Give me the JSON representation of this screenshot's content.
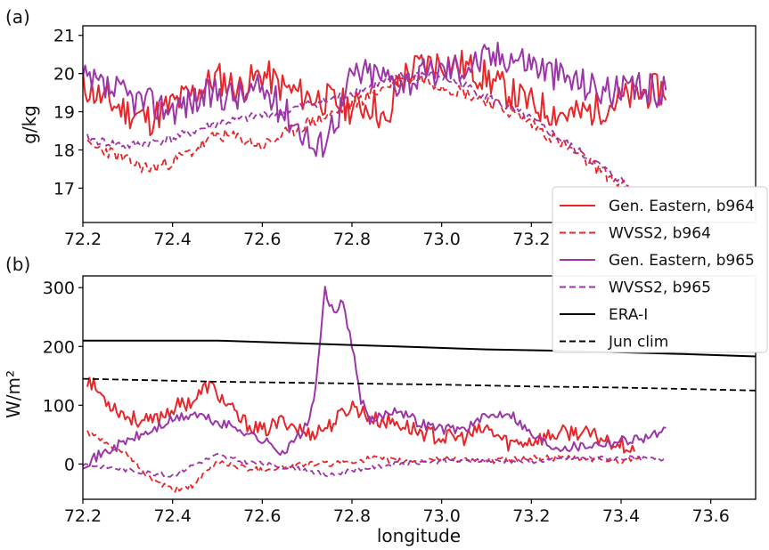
{
  "colors": {
    "red": "#e8262a",
    "purple": "#9b35a8",
    "black": "#000000"
  },
  "legend": {
    "placement": "right, between panels",
    "entries": [
      {
        "label": "Gen. Eastern, b964",
        "color": "#e8262a",
        "dash": "solid"
      },
      {
        "label": "WVSS2, b964",
        "color": "#e8262a",
        "dash": "dashed"
      },
      {
        "label": "Gen. Eastern, b965",
        "color": "#9b35a8",
        "dash": "solid"
      },
      {
        "label": "WVSS2, b965",
        "color": "#9b35a8",
        "dash": "dashed"
      },
      {
        "label": "ERA-I",
        "color": "#000000",
        "dash": "solid"
      },
      {
        "label": "Jun clim",
        "color": "#000000",
        "dash": "dashed"
      }
    ]
  },
  "chart_data": [
    {
      "type": "line",
      "panel_label": "(a)",
      "ylabel": "g/kg",
      "xlabel": "",
      "xlim": [
        72.2,
        73.7
      ],
      "ylim": [
        16.1,
        21.25
      ],
      "xticks": [
        "72.2",
        "72.4",
        "72.6",
        "72.8",
        "73.0",
        "73.2"
      ],
      "yticks": [
        "17",
        "18",
        "19",
        "20",
        "21"
      ],
      "series": [
        {
          "name": "Gen. Eastern, b964",
          "color": "#e8262a",
          "dash": "solid",
          "noise": 0.45,
          "seed": 11,
          "x": [
            72.2,
            72.25,
            72.3,
            72.35,
            72.4,
            72.45,
            72.5,
            72.55,
            72.6,
            72.65,
            72.7,
            72.75,
            72.8,
            72.85,
            72.88,
            72.9,
            72.95,
            73.0,
            73.05,
            73.1,
            73.15,
            73.2,
            73.25,
            73.3,
            73.35,
            73.4,
            73.45,
            73.5
          ],
          "y": [
            19.7,
            19.3,
            19.0,
            18.8,
            19.2,
            19.5,
            19.9,
            19.6,
            20.0,
            19.6,
            19.4,
            19.3,
            19.1,
            19.2,
            18.5,
            19.8,
            20.2,
            20.3,
            20.2,
            19.9,
            19.5,
            19.2,
            19.0,
            18.9,
            19.1,
            19.3,
            19.5,
            19.6
          ]
        },
        {
          "name": "WVSS2, b964",
          "color": "#e8262a",
          "dash": "dashed",
          "noise": 0.18,
          "seed": 23,
          "x": [
            72.21,
            72.25,
            72.3,
            72.35,
            72.4,
            72.45,
            72.5,
            72.55,
            72.6,
            72.65,
            72.7,
            72.75,
            72.8,
            72.85,
            72.9,
            72.95,
            73.0,
            73.05,
            73.1,
            73.15,
            73.2,
            73.25,
            73.3,
            73.35,
            73.4,
            73.42
          ],
          "y": [
            18.1,
            18.0,
            17.7,
            17.5,
            17.7,
            18.0,
            18.4,
            18.3,
            18.1,
            18.4,
            18.7,
            18.9,
            19.2,
            19.5,
            19.8,
            19.9,
            19.7,
            19.5,
            19.3,
            19.0,
            18.7,
            18.3,
            17.9,
            17.5,
            17.1,
            16.9
          ]
        },
        {
          "name": "Gen. Eastern, b965",
          "color": "#9b35a8",
          "dash": "solid",
          "noise": 0.45,
          "seed": 37,
          "x": [
            72.2,
            72.25,
            72.3,
            72.35,
            72.4,
            72.45,
            72.5,
            72.55,
            72.6,
            72.65,
            72.7,
            72.72,
            72.75,
            72.78,
            72.8,
            72.85,
            72.9,
            72.95,
            73.0,
            73.05,
            73.1,
            73.15,
            73.2,
            73.25,
            73.3,
            73.35,
            73.4,
            73.45,
            73.5
          ],
          "y": [
            19.8,
            19.6,
            19.4,
            19.2,
            19.1,
            19.3,
            19.5,
            19.4,
            19.6,
            19.0,
            18.4,
            17.9,
            18.6,
            19.2,
            20.0,
            20.0,
            19.8,
            19.9,
            20.1,
            20.2,
            20.4,
            20.5,
            20.3,
            20.0,
            19.8,
            19.6,
            19.5,
            19.6,
            19.5
          ]
        },
        {
          "name": "WVSS2, b965",
          "color": "#9b35a8",
          "dash": "dashed",
          "noise": 0.12,
          "seed": 41,
          "x": [
            72.21,
            72.25,
            72.3,
            72.35,
            72.4,
            72.45,
            72.5,
            72.55,
            72.6,
            72.65,
            72.7,
            72.75,
            72.8,
            72.85,
            72.9,
            72.95,
            73.0,
            73.05,
            73.1,
            73.15,
            73.2,
            73.25,
            73.3,
            73.35,
            73.4,
            73.43
          ],
          "y": [
            18.3,
            18.2,
            18.1,
            18.2,
            18.3,
            18.5,
            18.7,
            18.8,
            18.9,
            19.0,
            19.2,
            19.3,
            19.5,
            19.7,
            19.9,
            20.0,
            19.9,
            19.7,
            19.4,
            19.1,
            18.8,
            18.4,
            18.0,
            17.6,
            17.2,
            16.9
          ]
        }
      ]
    },
    {
      "type": "line",
      "panel_label": "(b)",
      "ylabel": "W/m²",
      "xlabel": "longitude",
      "xlim": [
        72.2,
        73.7
      ],
      "ylim": [
        -60,
        320
      ],
      "xticks": [
        "72.2",
        "72.4",
        "72.6",
        "72.8",
        "73.0",
        "73.2",
        "73.4",
        "73.6"
      ],
      "yticks": [
        "0",
        "100",
        "200",
        "300"
      ],
      "series": [
        {
          "name": "Gen. Eastern, b964",
          "color": "#e8262a",
          "dash": "solid",
          "noise": 14,
          "seed": 53,
          "x": [
            72.21,
            72.25,
            72.3,
            72.35,
            72.4,
            72.45,
            72.48,
            72.5,
            72.55,
            72.6,
            72.65,
            72.7,
            72.75,
            72.8,
            72.85,
            72.9,
            72.95,
            73.0,
            73.05,
            73.1,
            73.15,
            73.2,
            73.25,
            73.3,
            73.35,
            73.4,
            73.43
          ],
          "y": [
            145,
            110,
            80,
            70,
            95,
            110,
            135,
            120,
            75,
            55,
            75,
            50,
            65,
            100,
            75,
            70,
            55,
            45,
            45,
            60,
            35,
            40,
            50,
            55,
            45,
            35,
            25
          ]
        },
        {
          "name": "WVSS2, b964",
          "color": "#e8262a",
          "dash": "dashed",
          "noise": 5,
          "seed": 61,
          "x": [
            72.21,
            72.25,
            72.3,
            72.35,
            72.4,
            72.45,
            72.5,
            72.55,
            72.6,
            72.65,
            72.7,
            72.75,
            72.8,
            72.85,
            72.9,
            72.95,
            73.0,
            73.1,
            73.2,
            73.3,
            73.4,
            73.45
          ],
          "y": [
            55,
            35,
            15,
            -25,
            -45,
            -35,
            5,
            -5,
            -10,
            -5,
            0,
            0,
            5,
            10,
            5,
            5,
            10,
            5,
            10,
            10,
            5,
            15
          ]
        },
        {
          "name": "Gen. Eastern, b965",
          "color": "#9b35a8",
          "dash": "solid",
          "noise": 9,
          "seed": 71,
          "x": [
            72.2,
            72.25,
            72.3,
            72.35,
            72.4,
            72.45,
            72.5,
            72.55,
            72.6,
            72.65,
            72.7,
            72.72,
            72.74,
            72.76,
            72.78,
            72.8,
            72.82,
            72.84,
            72.86,
            72.9,
            72.95,
            73.0,
            73.05,
            73.1,
            73.15,
            73.2,
            73.25,
            73.3,
            73.35,
            73.4,
            73.45,
            73.5
          ],
          "y": [
            0,
            20,
            40,
            55,
            75,
            85,
            70,
            60,
            40,
            20,
            65,
            130,
            300,
            250,
            280,
            200,
            110,
            70,
            80,
            95,
            70,
            60,
            60,
            80,
            90,
            50,
            30,
            30,
            35,
            40,
            45,
            55
          ]
        },
        {
          "name": "WVSS2, b965",
          "color": "#9b35a8",
          "dash": "dashed",
          "noise": 4,
          "seed": 83,
          "x": [
            72.2,
            72.3,
            72.4,
            72.45,
            72.5,
            72.55,
            72.6,
            72.65,
            72.7,
            72.75,
            72.8,
            72.9,
            73.0,
            73.1,
            73.2,
            73.3,
            73.4,
            73.5
          ],
          "y": [
            0,
            -10,
            -20,
            0,
            15,
            5,
            0,
            -5,
            -10,
            -20,
            -10,
            0,
            5,
            5,
            5,
            10,
            10,
            8
          ]
        },
        {
          "name": "ERA-I",
          "color": "#000000",
          "dash": "solid",
          "noise": 0,
          "seed": 0,
          "x": [
            72.2,
            72.5,
            72.7,
            72.9,
            73.1,
            73.3,
            73.5,
            73.7
          ],
          "y": [
            210,
            210,
            205,
            200,
            195,
            192,
            188,
            183
          ]
        },
        {
          "name": "Jun clim",
          "color": "#000000",
          "dash": "dashed",
          "noise": 0,
          "seed": 0,
          "x": [
            72.2,
            72.5,
            72.8,
            73.0,
            73.2,
            73.4,
            73.7
          ],
          "y": [
            145,
            140,
            137,
            135,
            132,
            130,
            125
          ]
        }
      ]
    }
  ]
}
